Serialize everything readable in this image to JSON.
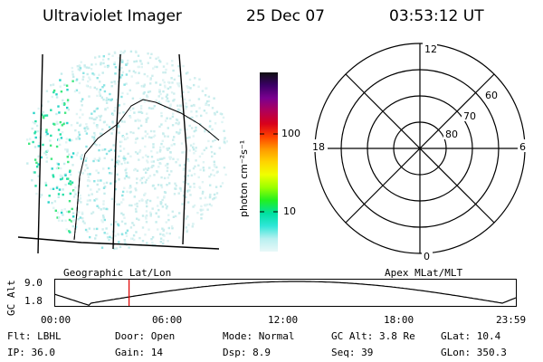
{
  "header": {
    "instrument": "Ultraviolet Imager",
    "date": "25 Dec 07",
    "time": "03:53:12 UT"
  },
  "colorbar": {
    "label": "photon cm⁻²s⁻¹",
    "ticks": [
      "100",
      "10"
    ],
    "colors": [
      "#101010",
      "#3a0066",
      "#7a0090",
      "#b0005a",
      "#d8001c",
      "#ff4000",
      "#ff9a00",
      "#ffd400",
      "#f0ff00",
      "#9aff00",
      "#22f020",
      "#00e0a0",
      "#30e6d8",
      "#b8f0f0",
      "#e8f8f8"
    ]
  },
  "polar_plot": {
    "mlt_labels": {
      "top": "12",
      "left": "18",
      "right": "6",
      "bottom": "0"
    },
    "lat_labels": [
      "60",
      "70",
      "80"
    ]
  },
  "altitude_plot": {
    "ylabel": "GC Alt",
    "yticks": [
      "9.0",
      "1.8"
    ],
    "left_caption": "Geographic Lat/Lon",
    "right_caption": "Apex MLat/MLT",
    "xticks": [
      "00:00",
      "06:00",
      "12:00",
      "18:00",
      "23:59"
    ],
    "current_marker_hours": 3.887,
    "curve_minima_hours": [
      1.9,
      23.3
    ],
    "curve_max_hours": 12.6
  },
  "info": {
    "filter": "Flt: LBHL",
    "door": "Door: Open",
    "mode": "Mode: Normal",
    "gc_alt": "GC Alt: 3.8 Re",
    "glat": "GLat:  10.4",
    "ip": "IP: 36.0",
    "gain": "Gain: 14",
    "dsp": "Dsp:    8.9",
    "seq": "Seq: 39",
    "glon": "GLon: 350.3"
  }
}
